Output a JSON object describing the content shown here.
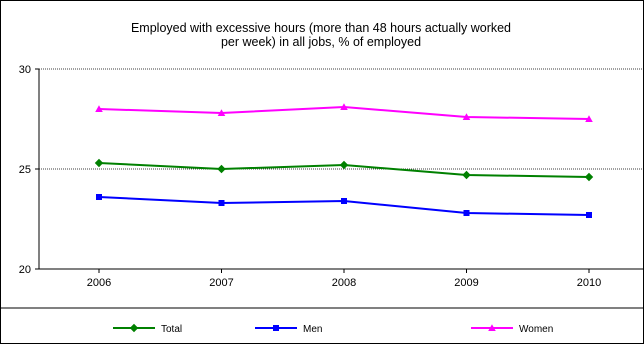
{
  "chart_data": {
    "type": "line",
    "title": [
      "Employed with excessive hours (more than 48 hours actually worked",
      "per week) in all jobs, %  of employed"
    ],
    "categories": [
      "2006",
      "2007",
      "2008",
      "2009",
      "2010"
    ],
    "ylim": [
      20,
      30
    ],
    "y_ticks": [
      "20",
      "25",
      "30"
    ],
    "grid": true,
    "legend_position": "bottom",
    "series": [
      {
        "name": "Total",
        "values": [
          25.3,
          25.0,
          25.2,
          24.7,
          24.6
        ],
        "color": "#008000",
        "marker": "diamond"
      },
      {
        "name": "Men",
        "values": [
          23.6,
          23.3,
          23.4,
          22.8,
          22.7
        ],
        "color": "#0000ff",
        "marker": "square"
      },
      {
        "name": "Women",
        "values": [
          28.0,
          27.8,
          28.1,
          27.6,
          27.5
        ],
        "color": "#ff00ff",
        "marker": "triangle"
      }
    ]
  }
}
